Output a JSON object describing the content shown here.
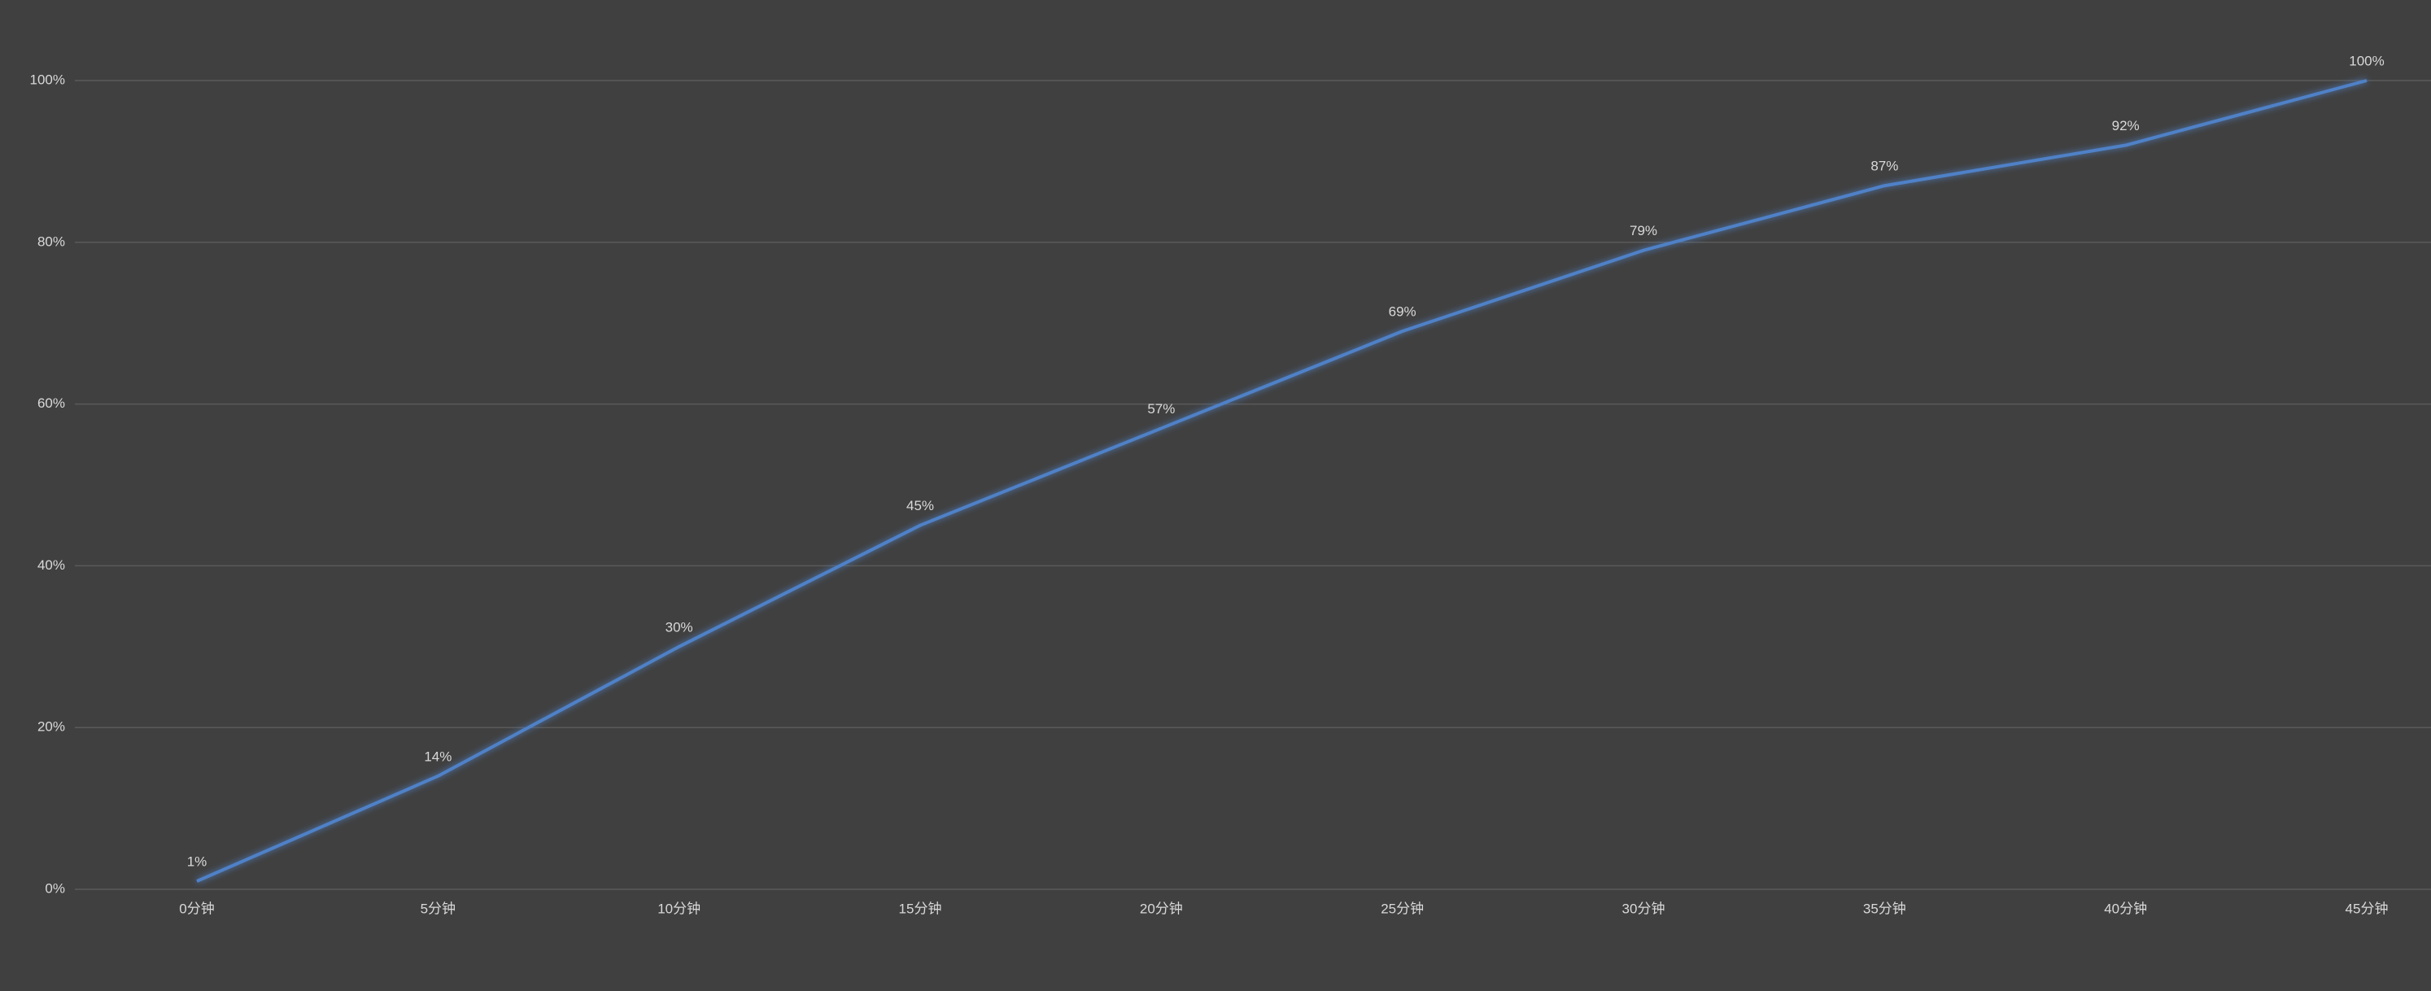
{
  "chart_data": {
    "type": "line",
    "categories": [
      "0分钟",
      "5分钟",
      "10分钟",
      "15分钟",
      "20分钟",
      "25分钟",
      "30分钟",
      "35分钟",
      "40分钟",
      "45分钟"
    ],
    "series": [
      {
        "color": "#4f81c7",
        "values": [
          1,
          14,
          30,
          45,
          57,
          69,
          79,
          87,
          92,
          100
        ],
        "value_labels": [
          "1%",
          "14%",
          "30%",
          "45%",
          "57%",
          "69%",
          "79%",
          "87%",
          "92%",
          "100%"
        ]
      }
    ],
    "ylim": [
      0,
      100
    ],
    "yticks": [
      {
        "value": 0,
        "label": "0%"
      },
      {
        "value": 20,
        "label": "20%"
      },
      {
        "value": 40,
        "label": "40%"
      },
      {
        "value": 60,
        "label": "60%"
      },
      {
        "value": 80,
        "label": "80%"
      },
      {
        "value": 100,
        "label": "100%"
      }
    ],
    "grid": true
  }
}
